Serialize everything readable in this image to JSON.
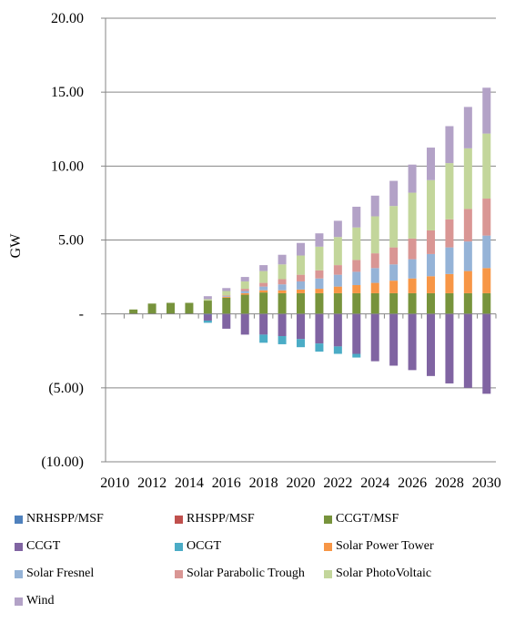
{
  "chart_data": {
    "type": "bar",
    "stacked": true,
    "title": "",
    "xlabel": "",
    "ylabel": "GW",
    "ylim": [
      -10,
      20
    ],
    "y_ticks": [
      {
        "value": 20,
        "label": "20.00"
      },
      {
        "value": 15,
        "label": "15.00"
      },
      {
        "value": 10,
        "label": "10.00"
      },
      {
        "value": 5,
        "label": "5.00"
      },
      {
        "value": 0,
        "label": "-"
      },
      {
        "value": -5,
        "label": "(5.00)"
      },
      {
        "value": -10,
        "label": "(10.00)"
      }
    ],
    "categories": [
      "2010",
      "2011",
      "2012",
      "2013",
      "2014",
      "2015",
      "2016",
      "2017",
      "2018",
      "2019",
      "2020",
      "2021",
      "2022",
      "2023",
      "2024",
      "2025",
      "2026",
      "2027",
      "2028",
      "2029",
      "2030"
    ],
    "x_tick_labels": [
      "2010",
      "2012",
      "2014",
      "2016",
      "2018",
      "2020",
      "2022",
      "2024",
      "2026",
      "2028",
      "2030"
    ],
    "legend_position": "bottom",
    "series": [
      {
        "name": "NRHSPP/MSF",
        "color": "#4f81bd",
        "values": [
          0,
          0,
          0,
          0,
          0,
          -0.05,
          0,
          0,
          0,
          0,
          0,
          0,
          0,
          0,
          0,
          0,
          0,
          0,
          0,
          0,
          0
        ]
      },
      {
        "name": "RHSPP/MSF",
        "color": "#c0504d",
        "values": [
          0,
          0,
          0,
          0,
          0,
          0,
          0,
          0,
          0,
          0,
          0,
          0,
          0,
          0,
          0,
          0,
          0,
          0,
          0,
          0,
          0
        ]
      },
      {
        "name": "CCGT/MSF",
        "color": "#77933c",
        "values": [
          0,
          0.3,
          0.7,
          0.75,
          0.75,
          0.9,
          1.1,
          1.3,
          1.45,
          1.4,
          1.4,
          1.4,
          1.4,
          1.4,
          1.4,
          1.4,
          1.4,
          1.4,
          1.4,
          1.4,
          1.4
        ]
      },
      {
        "name": "CCGT",
        "color": "#8064a2",
        "values": [
          0,
          0,
          0,
          0,
          0,
          -0.4,
          -1.0,
          -1.4,
          -1.4,
          -1.5,
          -1.7,
          -2.0,
          -2.2,
          -2.7,
          -3.2,
          -3.5,
          -3.8,
          -4.2,
          -4.7,
          -5.0,
          -5.4
        ]
      },
      {
        "name": "OCGT",
        "color": "#4bacc6",
        "values": [
          0,
          0,
          0,
          0,
          0,
          -0.15,
          0,
          0,
          -0.55,
          -0.55,
          -0.55,
          -0.55,
          -0.5,
          -0.25,
          0,
          0,
          0,
          0,
          0,
          0,
          0
        ]
      },
      {
        "name": "Solar Power Tower",
        "color": "#f79646",
        "values": [
          0,
          0,
          0,
          0,
          0,
          0,
          0.05,
          0.1,
          0.15,
          0.2,
          0.25,
          0.3,
          0.45,
          0.55,
          0.7,
          0.85,
          1.0,
          1.15,
          1.3,
          1.5,
          1.7
        ]
      },
      {
        "name": "Solar Fresnel",
        "color": "#95b3d7",
        "values": [
          0,
          0,
          0,
          0,
          0,
          0,
          0.05,
          0.15,
          0.25,
          0.4,
          0.55,
          0.7,
          0.8,
          0.9,
          1.0,
          1.1,
          1.3,
          1.5,
          1.8,
          2.0,
          2.2
        ]
      },
      {
        "name": "Solar Parabolic Trough",
        "color": "#d99694",
        "values": [
          0,
          0,
          0,
          0,
          0,
          0,
          0.05,
          0.15,
          0.25,
          0.35,
          0.45,
          0.55,
          0.65,
          0.8,
          1.0,
          1.15,
          1.4,
          1.6,
          1.9,
          2.2,
          2.5
        ]
      },
      {
        "name": "Solar PhotoVoltaic",
        "color": "#c3d69b",
        "values": [
          0,
          0,
          0,
          0,
          0,
          0.1,
          0.3,
          0.5,
          0.8,
          1.0,
          1.3,
          1.6,
          1.9,
          2.2,
          2.5,
          2.8,
          3.1,
          3.4,
          3.8,
          4.1,
          4.4
        ]
      },
      {
        "name": "Wind",
        "color": "#b3a2c7",
        "values": [
          0,
          0,
          0,
          0,
          0,
          0.2,
          0.2,
          0.3,
          0.4,
          0.65,
          0.85,
          0.9,
          1.1,
          1.4,
          1.4,
          1.7,
          1.9,
          2.2,
          2.5,
          2.8,
          3.1
        ]
      }
    ]
  }
}
